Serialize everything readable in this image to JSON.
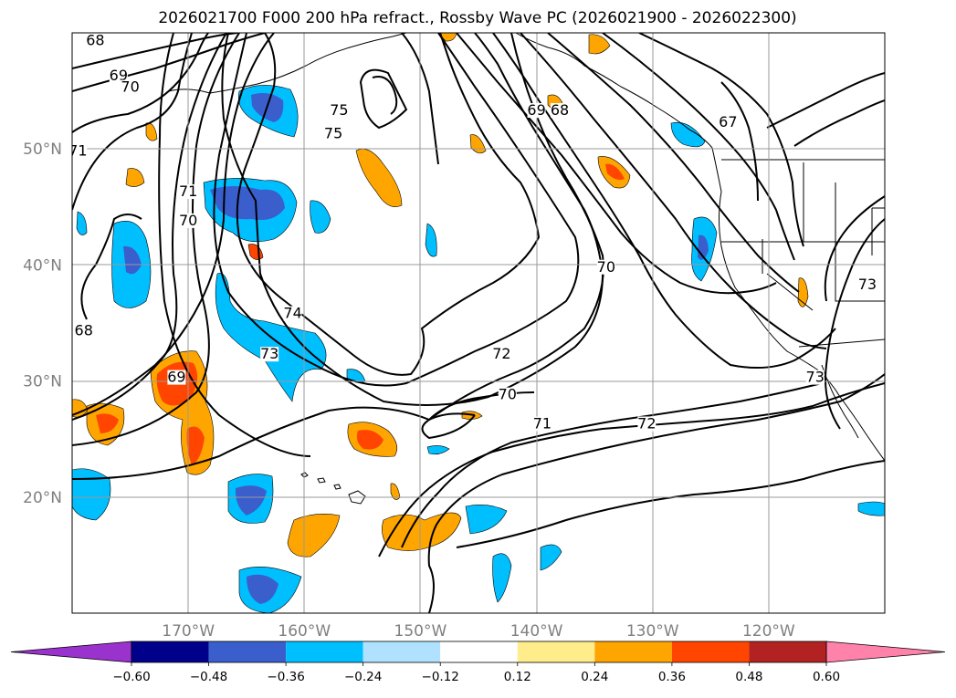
{
  "chart_data": {
    "type": "contour-map",
    "title": "2026021700 F000 200 hPa refract., Rossby Wave PC (2026021900 - 2026022300)",
    "lon_range": [
      -180,
      -110
    ],
    "lat_range": [
      10,
      60
    ],
    "x_ticks": [
      {
        "lon": -170,
        "label": "170°W"
      },
      {
        "lon": -160,
        "label": "160°W"
      },
      {
        "lon": -150,
        "label": "150°W"
      },
      {
        "lon": -140,
        "label": "140°W"
      },
      {
        "lon": -130,
        "label": "130°W"
      },
      {
        "lon": -120,
        "label": "120°W"
      }
    ],
    "y_ticks": [
      {
        "lat": 20,
        "label": "20°N"
      },
      {
        "lat": 30,
        "label": "30°N"
      },
      {
        "lat": 40,
        "label": "40°N"
      },
      {
        "lat": 50,
        "label": "50°N"
      }
    ],
    "colorbar": {
      "boundaries": [
        -0.6,
        -0.48,
        -0.36,
        -0.24,
        -0.12,
        0.12,
        0.24,
        0.36,
        0.48,
        0.6
      ],
      "tick_labels": [
        "−0.60",
        "−0.48",
        "−0.36",
        "−0.24",
        "−0.12",
        "0.12",
        "0.24",
        "0.36",
        "0.48",
        "0.60"
      ],
      "colors": [
        "#9a32cd",
        "#00008b",
        "#3a5fcd",
        "#00bfff",
        "#b0e2ff",
        "#ffffff",
        "#ffec8b",
        "#ffa500",
        "#ff4500",
        "#b22222",
        "#ff82ab"
      ],
      "extend": "both"
    },
    "contour_levels": [
      67,
      68,
      69,
      70,
      71,
      72,
      73,
      74,
      75
    ],
    "contour_labels": [
      {
        "text": "68",
        "lon": -178,
        "lat": 59
      },
      {
        "text": "69",
        "lon": -176,
        "lat": 56
      },
      {
        "text": "70",
        "lon": -175,
        "lat": 55
      },
      {
        "text": "71",
        "lon": -179.5,
        "lat": 49.5
      },
      {
        "text": "75",
        "lon": -157,
        "lat": 53
      },
      {
        "text": "75",
        "lon": -157.5,
        "lat": 51
      },
      {
        "text": "69",
        "lon": -140,
        "lat": 53
      },
      {
        "text": "68",
        "lon": -138,
        "lat": 53
      },
      {
        "text": "67",
        "lon": -123.5,
        "lat": 52
      },
      {
        "text": "71",
        "lon": -170,
        "lat": 46
      },
      {
        "text": "70",
        "lon": -170,
        "lat": 43.5
      },
      {
        "text": "70",
        "lon": -134,
        "lat": 39.5
      },
      {
        "text": "73",
        "lon": -111.5,
        "lat": 38
      },
      {
        "text": "68",
        "lon": -179,
        "lat": 34
      },
      {
        "text": "74",
        "lon": -161,
        "lat": 35.5
      },
      {
        "text": "73",
        "lon": -163,
        "lat": 32
      },
      {
        "text": "72",
        "lon": -143,
        "lat": 32
      },
      {
        "text": "69",
        "lon": -171,
        "lat": 30
      },
      {
        "text": "70",
        "lon": -142.5,
        "lat": 28.5
      },
      {
        "text": "73",
        "lon": -116,
        "lat": 30
      },
      {
        "text": "71",
        "lon": -139.5,
        "lat": 26
      },
      {
        "text": "72",
        "lon": -130.5,
        "lat": 26
      }
    ]
  }
}
